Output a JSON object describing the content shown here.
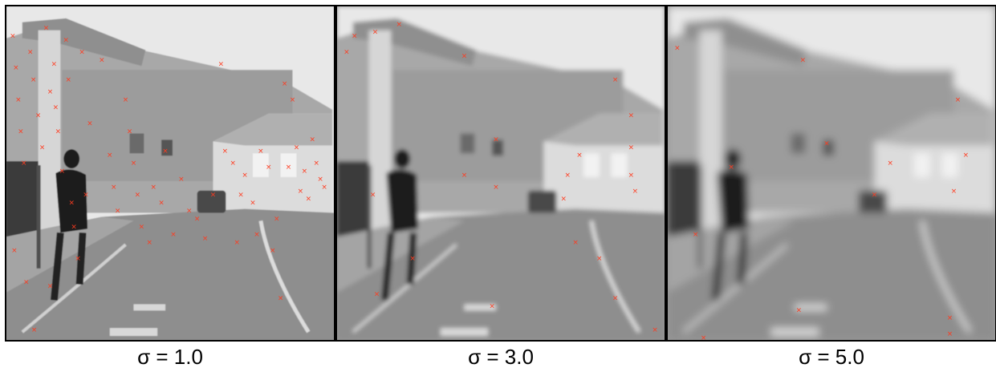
{
  "panels": [
    {
      "caption": "σ = 1.0",
      "blur": 0.6
    },
    {
      "caption": "σ = 3.0",
      "blur": 2.6
    },
    {
      "caption": "σ = 5.0",
      "blur": 5.0
    }
  ],
  "colors": {
    "keypoint": "#ff3b1f"
  }
}
